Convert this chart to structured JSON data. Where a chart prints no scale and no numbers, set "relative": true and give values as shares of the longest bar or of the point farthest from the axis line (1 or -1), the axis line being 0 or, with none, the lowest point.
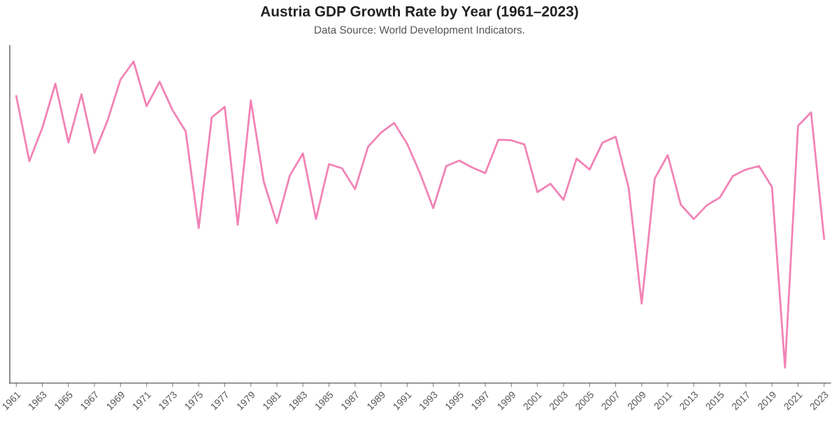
{
  "chart_data": {
    "type": "line",
    "title": "Austria GDP Growth Rate by Year (1961–2023)",
    "subtitle": "Data Source: World Development Indicators.",
    "relative": true,
    "grid": false,
    "marker": "none",
    "line_style": "solid",
    "categories": [
      "1961",
      null,
      "1963",
      null,
      "1965",
      null,
      "1967",
      null,
      "1969",
      null,
      "1971",
      null,
      "1973",
      null,
      "1975",
      null,
      "1977",
      null,
      "1979",
      null,
      "1981",
      null,
      "1983",
      null,
      "1985",
      null,
      "1987",
      null,
      "1989",
      null,
      "1991",
      null,
      "1993",
      null,
      "1995",
      null,
      "1997",
      null,
      "1999",
      null,
      "2001",
      null,
      "2003",
      null,
      "2005",
      null,
      "2007",
      null,
      "2009",
      null,
      "2011",
      null,
      "2013",
      null,
      "2015",
      null,
      "2017",
      null,
      "2019",
      null,
      "2021",
      null,
      "2023"
    ],
    "series": [
      {
        "color": "#f283b6",
        "values": [
          0.892,
          0.69,
          0.794,
          0.931,
          0.748,
          0.898,
          0.716,
          0.816,
          0.944,
          1,
          0.861,
          0.937,
          0.848,
          0.783,
          0.482,
          0.826,
          0.859,
          0.492,
          0.879,
          0.625,
          0.497,
          0.646,
          0.714,
          0.51,
          0.681,
          0.668,
          0.603,
          0.735,
          0.779,
          0.809,
          0.744,
          0.651,
          0.544,
          0.675,
          0.692,
          0.67,
          0.653,
          0.757,
          0.755,
          0.742,
          0.594,
          0.62,
          0.57,
          0.698,
          0.664,
          0.748,
          0.766,
          0.607,
          0.247,
          0.636,
          0.709,
          0.555,
          0.51,
          0.553,
          0.577,
          0.644,
          0.664,
          0.675,
          0.61,
          0.048,
          0.8,
          0.842,
          0.449
        ]
      }
    ]
  }
}
